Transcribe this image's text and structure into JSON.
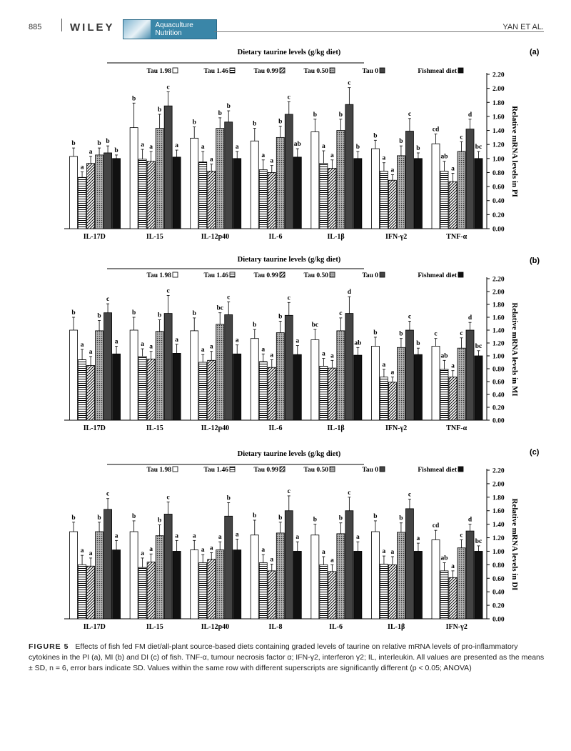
{
  "header": {
    "page_number": "885",
    "publisher": "WILEY",
    "journal": "Aquaculture Nutrition",
    "author": "YAN ET AL."
  },
  "legend_title": "Dietary taurine levels (g/kg diet)",
  "legend_items": [
    "Fishmeal diet",
    "Tau 0",
    "Tau 0.50",
    "Tau 0.99",
    "Tau 1.46",
    "Tau 1.98"
  ],
  "series_fills": [
    "#111111",
    "#444444",
    "hatch-dots",
    "hatch-diag",
    "hatch-horiz",
    "#ffffff"
  ],
  "chart_data": [
    {
      "panel": "(a)",
      "type": "bar",
      "ylabel": "Relative mRNA levels in PI",
      "ylim": [
        0,
        2.2
      ],
      "yticks": [
        "0.00",
        "0.20",
        "0.40",
        "0.60",
        "0.80",
        "1.00",
        "1.20",
        "1.40",
        "1.60",
        "1.80",
        "2.00",
        "2.20"
      ],
      "categories": [
        "TNF-α",
        "IFN-γ2",
        "IL-1β",
        "IL-6",
        "IL-12p40",
        "IL-15",
        "IL-17D"
      ],
      "series": [
        {
          "name": "Fishmeal diet",
          "values": [
            1.0,
            1.0,
            1.0,
            1.02,
            1.0,
            1.02,
            1.0
          ],
          "errors": [
            0.1,
            0.08,
            0.1,
            0.12,
            0.1,
            0.1,
            0.05
          ],
          "labels": [
            "bc",
            "b",
            "b",
            "ab",
            "a",
            "a",
            "b"
          ]
        },
        {
          "name": "Tau 0",
          "values": [
            1.42,
            1.39,
            1.77,
            1.63,
            1.52,
            1.75,
            1.08
          ],
          "errors": [
            0.14,
            0.18,
            0.24,
            0.18,
            0.16,
            0.2,
            0.1
          ],
          "labels": [
            "d",
            "c",
            "c",
            "c",
            "b",
            "c",
            "b"
          ]
        },
        {
          "name": "Tau 0.50",
          "values": [
            1.1,
            1.04,
            1.4,
            1.3,
            1.43,
            1.43,
            1.05
          ],
          "errors": [
            0.14,
            0.14,
            0.16,
            0.16,
            0.15,
            0.2,
            0.1
          ],
          "labels": [
            "c",
            "b",
            "b",
            "b",
            "b",
            "b",
            "b"
          ]
        },
        {
          "name": "Tau 0.99",
          "values": [
            0.67,
            0.69,
            0.86,
            0.8,
            0.82,
            0.96,
            0.93
          ],
          "errors": [
            0.12,
            0.08,
            0.12,
            0.1,
            0.1,
            0.14,
            0.1
          ],
          "labels": [
            "a",
            "a",
            "a",
            "a",
            "a",
            "a",
            "a"
          ]
        },
        {
          "name": "Tau 1.46",
          "values": [
            0.82,
            0.82,
            0.93,
            0.84,
            0.95,
            0.99,
            0.73
          ],
          "errors": [
            0.14,
            0.12,
            0.18,
            0.14,
            0.15,
            0.14,
            0.08
          ],
          "labels": [
            "ab",
            "a",
            "a",
            "a",
            "a",
            "a",
            "a"
          ]
        },
        {
          "name": "Tau 1.98",
          "values": [
            1.21,
            1.14,
            1.38,
            1.25,
            1.29,
            1.44,
            1.03
          ],
          "errors": [
            0.14,
            0.12,
            0.18,
            0.18,
            0.16,
            0.35,
            0.12
          ],
          "labels": [
            "cd",
            "b",
            "b",
            "b",
            "b",
            "b",
            "b"
          ]
        }
      ]
    },
    {
      "panel": "(b)",
      "type": "bar",
      "ylabel": "Relative mRNA levels in MI",
      "ylim": [
        0,
        2.2
      ],
      "yticks": [
        "0.00",
        "0.20",
        "0.40",
        "0.60",
        "0.80",
        "1.00",
        "1.20",
        "1.40",
        "1.60",
        "1.80",
        "2.00",
        "2.20"
      ],
      "categories": [
        "TNF-α",
        "IFN-γ2",
        "IL-1β",
        "IL-6",
        "IL-12p40",
        "IL-15",
        "IL-17D"
      ],
      "series": [
        {
          "name": "Fishmeal diet",
          "values": [
            1.0,
            1.02,
            1.01,
            1.02,
            1.03,
            1.04,
            1.03
          ],
          "errors": [
            0.08,
            0.1,
            0.12,
            0.14,
            0.14,
            0.14,
            0.12
          ],
          "labels": [
            "bc",
            "b",
            "ab",
            "a",
            "a",
            "a",
            "a"
          ]
        },
        {
          "name": "Tau 0",
          "values": [
            1.4,
            1.4,
            1.66,
            1.63,
            1.64,
            1.66,
            1.67
          ],
          "errors": [
            0.12,
            0.14,
            0.26,
            0.2,
            0.2,
            0.28,
            0.14
          ],
          "labels": [
            "d",
            "c",
            "d",
            "c",
            "c",
            "c",
            "c"
          ]
        },
        {
          "name": "Tau 0.50",
          "values": [
            1.12,
            1.13,
            1.39,
            1.36,
            1.49,
            1.38,
            1.39
          ],
          "errors": [
            0.16,
            0.14,
            0.2,
            0.18,
            0.18,
            0.18,
            0.16
          ],
          "labels": [
            "c",
            "b",
            "c",
            "b",
            "bc",
            "b",
            "b"
          ]
        },
        {
          "name": "Tau 0.99",
          "values": [
            0.67,
            0.59,
            0.81,
            0.82,
            0.93,
            0.95,
            0.85
          ],
          "errors": [
            0.1,
            0.08,
            0.12,
            0.12,
            0.14,
            0.12,
            0.14
          ],
          "labels": [
            "a",
            "a",
            "a",
            "a",
            "a",
            "a",
            "a"
          ]
        },
        {
          "name": "Tau 1.46",
          "values": [
            0.79,
            0.67,
            0.84,
            0.91,
            0.9,
            0.99,
            0.94
          ],
          "errors": [
            0.14,
            0.12,
            0.12,
            0.12,
            0.12,
            0.12,
            0.16
          ],
          "labels": [
            "ab",
            "a",
            "a",
            "a",
            "a",
            "a",
            "a"
          ]
        },
        {
          "name": "Tau 1.98",
          "values": [
            1.15,
            1.15,
            1.25,
            1.27,
            1.39,
            1.4,
            1.4
          ],
          "errors": [
            0.12,
            0.14,
            0.16,
            0.14,
            0.2,
            0.2,
            0.2
          ],
          "labels": [
            "c",
            "b",
            "bc",
            "b",
            "b",
            "b",
            "b"
          ]
        }
      ]
    },
    {
      "panel": "(c)",
      "type": "bar",
      "ylabel": "Relative mRNA levels in DI",
      "ylim": [
        0,
        2.2
      ],
      "yticks": [
        "0.00",
        "0.20",
        "0.40",
        "0.60",
        "0.80",
        "1.00",
        "1.20",
        "1.40",
        "1.60",
        "1.80",
        "2.00",
        "2.20"
      ],
      "categories": [
        "IFN-γ2",
        "IL-1β",
        "IL-6",
        "IL-8",
        "IL-12p40",
        "IL-15",
        "IL-17D"
      ],
      "series": [
        {
          "name": "Fishmeal diet",
          "values": [
            1.0,
            1.0,
            1.0,
            1.0,
            1.02,
            1.0,
            1.02
          ],
          "errors": [
            0.08,
            0.12,
            0.14,
            0.14,
            0.16,
            0.16,
            0.14
          ],
          "labels": [
            "bc",
            "a",
            "a",
            "a",
            "a",
            "a",
            "a"
          ]
        },
        {
          "name": "Tau 0",
          "values": [
            1.3,
            1.63,
            1.6,
            1.6,
            1.52,
            1.55,
            1.62
          ],
          "errors": [
            0.1,
            0.14,
            0.2,
            0.22,
            0.2,
            0.18,
            0.16
          ],
          "labels": [
            "d",
            "c",
            "c",
            "c",
            "b",
            "c",
            "c"
          ]
        },
        {
          "name": "Tau 0.50",
          "values": [
            1.05,
            1.28,
            1.26,
            1.27,
            1.02,
            1.23,
            1.29
          ],
          "errors": [
            0.12,
            0.14,
            0.16,
            0.16,
            0.12,
            0.16,
            0.14
          ],
          "labels": [
            "c",
            "b",
            "b",
            "b",
            "a",
            "b",
            "b"
          ]
        },
        {
          "name": "Tau 0.99",
          "values": [
            0.61,
            0.8,
            0.7,
            0.71,
            0.88,
            0.84,
            0.78
          ],
          "errors": [
            0.1,
            0.12,
            0.1,
            0.1,
            0.1,
            0.12,
            0.12
          ],
          "labels": [
            "a",
            "a",
            "a",
            "a",
            "a",
            "a",
            "a"
          ]
        },
        {
          "name": "Tau 1.46",
          "values": [
            0.71,
            0.81,
            0.8,
            0.83,
            0.83,
            0.76,
            0.8
          ],
          "errors": [
            0.12,
            0.12,
            0.12,
            0.12,
            0.12,
            0.14,
            0.14
          ],
          "labels": [
            "ab",
            "a",
            "a",
            "a",
            "a",
            "a",
            "a"
          ]
        },
        {
          "name": "Tau 1.98",
          "values": [
            1.17,
            1.29,
            1.24,
            1.24,
            1.02,
            1.29,
            1.29
          ],
          "errors": [
            0.14,
            0.16,
            0.16,
            0.22,
            0.14,
            0.16,
            0.14
          ],
          "labels": [
            "cd",
            "b",
            "b",
            "b",
            "a",
            "b",
            "b"
          ]
        }
      ]
    }
  ],
  "caption": {
    "label": "FIGURE 5",
    "text": "Effects of fish fed FM diet/all-plant source-based diets containing graded levels of taurine on relative mRNA levels of pro-inflammatory cytokines in the PI (a), MI (b) and DI (c) of fish. TNF-α, tumour necrosis factor α; IFN-γ2, interferon γ2; IL, interleukin. All values are presented as the means ± SD, n = 6, error bars indicate SD. Values within the same row with different superscripts are significantly different (p < 0.05; ANOVA)"
  }
}
